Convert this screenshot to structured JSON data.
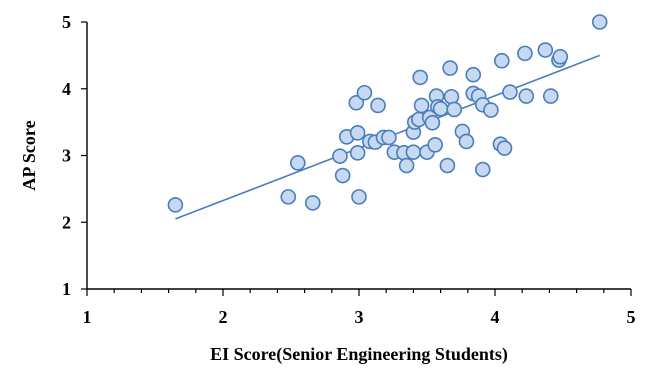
{
  "chart_data": {
    "type": "scatter",
    "title": "",
    "xlabel": "EI Score(Senior Engineering Students)",
    "ylabel": "AP Score",
    "xlim": [
      1,
      5
    ],
    "ylim": [
      1,
      5
    ],
    "x_ticks": [
      "1",
      "2",
      "3",
      "4",
      "5"
    ],
    "y_ticks": [
      "1",
      "2",
      "3",
      "4",
      "5"
    ],
    "grid": false,
    "point_fill": "#c6d9f1",
    "point_stroke": "#4a7ebb",
    "trendline": {
      "x": [
        1.65,
        4.77
      ],
      "y": [
        2.05,
        4.5
      ]
    },
    "points": [
      {
        "x": 1.65,
        "y": 2.26
      },
      {
        "x": 2.48,
        "y": 2.38
      },
      {
        "x": 2.55,
        "y": 2.89
      },
      {
        "x": 2.66,
        "y": 2.29
      },
      {
        "x": 2.86,
        "y": 2.99
      },
      {
        "x": 2.88,
        "y": 2.7
      },
      {
        "x": 2.91,
        "y": 3.28
      },
      {
        "x": 2.98,
        "y": 3.79
      },
      {
        "x": 2.99,
        "y": 3.34
      },
      {
        "x": 2.99,
        "y": 3.04
      },
      {
        "x": 3.0,
        "y": 2.38
      },
      {
        "x": 3.04,
        "y": 3.94
      },
      {
        "x": 3.08,
        "y": 3.21
      },
      {
        "x": 3.12,
        "y": 3.2
      },
      {
        "x": 3.14,
        "y": 3.75
      },
      {
        "x": 3.18,
        "y": 3.27
      },
      {
        "x": 3.22,
        "y": 3.27
      },
      {
        "x": 3.26,
        "y": 3.05
      },
      {
        "x": 3.33,
        "y": 3.04
      },
      {
        "x": 3.35,
        "y": 2.85
      },
      {
        "x": 3.4,
        "y": 3.35
      },
      {
        "x": 3.4,
        "y": 3.05
      },
      {
        "x": 3.41,
        "y": 3.5
      },
      {
        "x": 3.44,
        "y": 3.54
      },
      {
        "x": 3.45,
        "y": 4.17
      },
      {
        "x": 3.46,
        "y": 3.75
      },
      {
        "x": 3.5,
        "y": 3.05
      },
      {
        "x": 3.52,
        "y": 3.57
      },
      {
        "x": 3.54,
        "y": 3.49
      },
      {
        "x": 3.56,
        "y": 3.16
      },
      {
        "x": 3.57,
        "y": 3.89
      },
      {
        "x": 3.58,
        "y": 3.73
      },
      {
        "x": 3.6,
        "y": 3.7
      },
      {
        "x": 3.65,
        "y": 2.85
      },
      {
        "x": 3.67,
        "y": 4.31
      },
      {
        "x": 3.68,
        "y": 3.88
      },
      {
        "x": 3.7,
        "y": 3.69
      },
      {
        "x": 3.76,
        "y": 3.36
      },
      {
        "x": 3.79,
        "y": 3.21
      },
      {
        "x": 3.84,
        "y": 3.93
      },
      {
        "x": 3.84,
        "y": 4.21
      },
      {
        "x": 3.88,
        "y": 3.89
      },
      {
        "x": 3.91,
        "y": 3.76
      },
      {
        "x": 3.91,
        "y": 2.79
      },
      {
        "x": 3.97,
        "y": 3.68
      },
      {
        "x": 4.04,
        "y": 3.17
      },
      {
        "x": 4.05,
        "y": 4.42
      },
      {
        "x": 4.07,
        "y": 3.11
      },
      {
        "x": 4.11,
        "y": 3.95
      },
      {
        "x": 4.22,
        "y": 4.53
      },
      {
        "x": 4.23,
        "y": 3.89
      },
      {
        "x": 4.37,
        "y": 4.58
      },
      {
        "x": 4.41,
        "y": 3.89
      },
      {
        "x": 4.47,
        "y": 4.43
      },
      {
        "x": 4.48,
        "y": 4.48
      },
      {
        "x": 4.77,
        "y": 5.0
      }
    ]
  }
}
